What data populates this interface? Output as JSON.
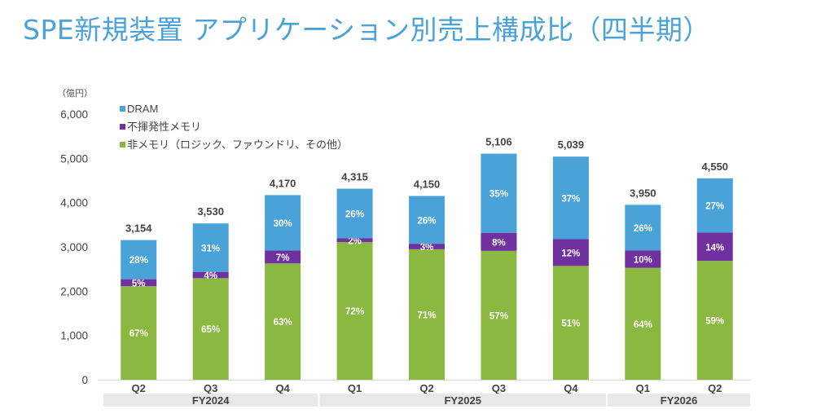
{
  "title": "SPE新規装置 アプリケーション別売上構成比（四半期）",
  "chart_data": {
    "type": "bar",
    "stacked": true,
    "title": "SPE新規装置 アプリケーション別売上構成比（四半期）",
    "unit_label": "（億円）",
    "ylim": [
      0,
      6000
    ],
    "yticks": [
      0,
      1000,
      2000,
      3000,
      4000,
      5000,
      6000
    ],
    "ytick_labels": [
      "0",
      "1,000",
      "2,000",
      "3,000",
      "4,000",
      "5,000",
      "6,000"
    ],
    "legend_position": "top-left",
    "categories": [
      "Q2",
      "Q3",
      "Q4",
      "Q1",
      "Q2",
      "Q3",
      "Q4",
      "Q1",
      "Q2"
    ],
    "groups": [
      {
        "label": "FY2024",
        "count": 3
      },
      {
        "label": "FY2025",
        "count": 4
      },
      {
        "label": "FY2026",
        "count": 2
      }
    ],
    "totals": [
      3154,
      3530,
      4170,
      4315,
      4150,
      5106,
      5039,
      3950,
      4550
    ],
    "total_labels": [
      "3,154",
      "3,530",
      "4,170",
      "4,315",
      "4,150",
      "5,106",
      "5,039",
      "3,950",
      "4,550"
    ],
    "series": [
      {
        "name": "非メモリ（ロジック、ファウンドリ、その他）",
        "color": "#8ab840",
        "percent": [
          67,
          65,
          63,
          72,
          71,
          57,
          51,
          64,
          59
        ]
      },
      {
        "name": "不揮発性メモリ",
        "color": "#7030a0",
        "percent": [
          5,
          4,
          7,
          2,
          3,
          8,
          12,
          10,
          14
        ]
      },
      {
        "name": "DRAM",
        "color": "#4aa3d8",
        "percent": [
          28,
          31,
          30,
          26,
          26,
          35,
          37,
          26,
          27
        ]
      }
    ],
    "legend_order": [
      2,
      1,
      0
    ]
  }
}
